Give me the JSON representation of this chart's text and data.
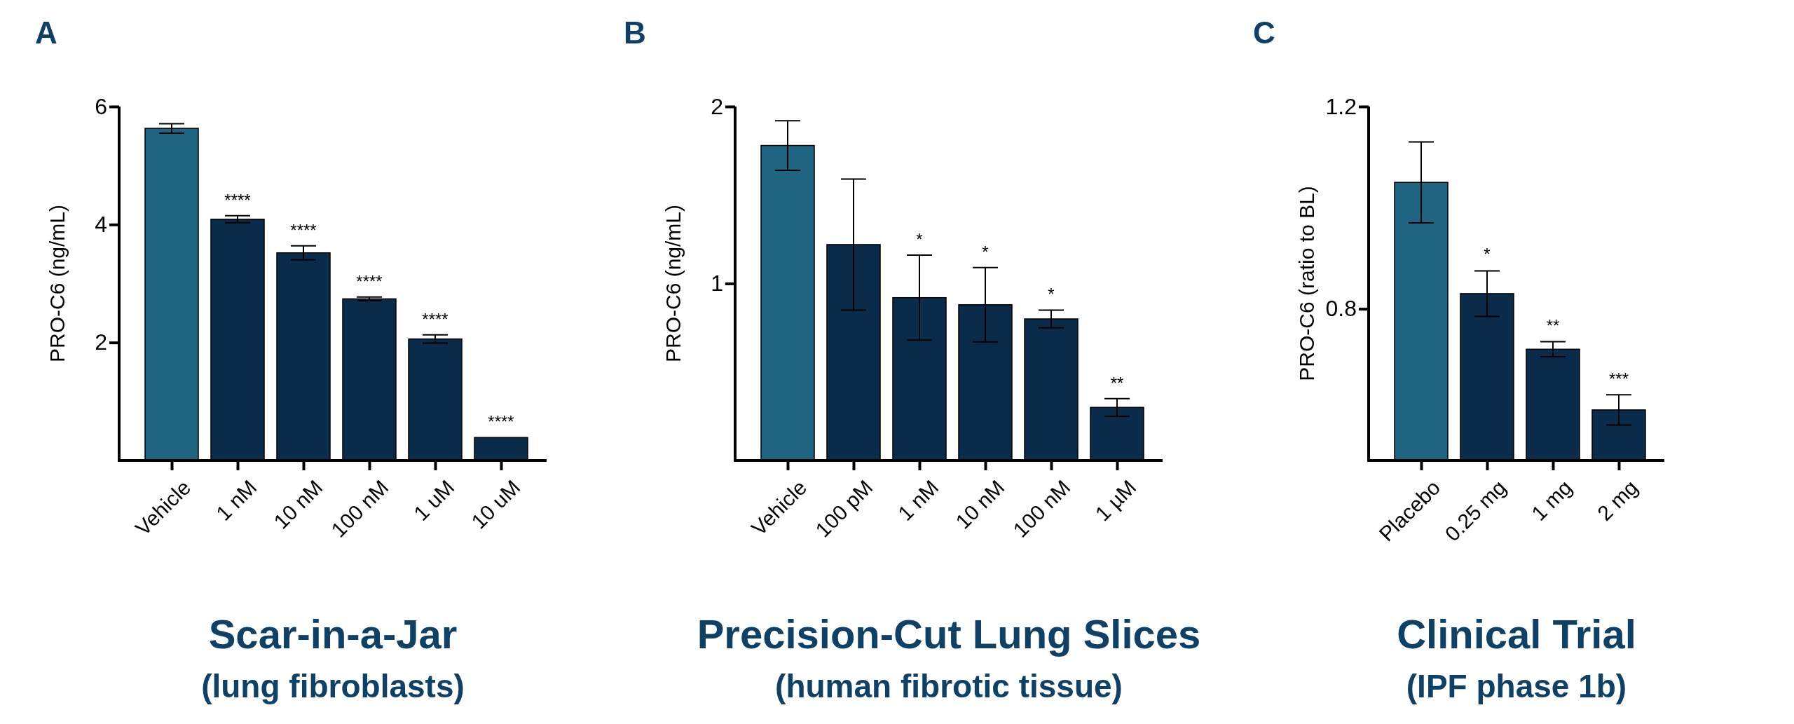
{
  "chart_data": [
    {
      "type": "bar",
      "title": "Scar-in-a-Jar",
      "subtitle": "(lung fibroblasts)",
      "ylabel": "PRO-C6 (ng/mL)",
      "categories": [
        "Vehicle",
        "1 nM",
        "10 nM",
        "100 nM",
        "1 uM",
        "10 uM"
      ],
      "values": [
        5.63,
        4.09,
        3.52,
        2.74,
        2.06,
        0.39
      ],
      "errors": [
        0.08,
        0.06,
        0.12,
        0.03,
        0.07,
        null
      ],
      "colors": [
        "#1f6480",
        "#0b2b4a",
        "#0b2b4a",
        "#0b2b4a",
        "#0b2b4a",
        "#0b2b4a"
      ],
      "ylim": [
        0,
        6
      ],
      "yticks": [
        2,
        4,
        6
      ],
      "annotations": [
        "A",
        {
          "text": "****",
          "x": "1 nM",
          "y": 4.15
        },
        {
          "text": "****",
          "x": "10 nM",
          "y": 3.64
        },
        {
          "text": "****",
          "x": "100 nM",
          "y": 2.77
        },
        {
          "text": "****",
          "x": "1 uM",
          "y": 2.13
        },
        {
          "text": "****",
          "x": "10 uM",
          "y": 0.39
        }
      ]
    },
    {
      "type": "bar",
      "title": "Precision-Cut Lung Slices",
      "subtitle": "(human fibrotic tissue)",
      "ylabel": "PRO-C6 (ng/mL)",
      "categories": [
        "Vehicle",
        "100 pM",
        "1 nM",
        "10 nM",
        "100 nM",
        "1 µM"
      ],
      "values": [
        1.78,
        1.22,
        0.92,
        0.88,
        0.8,
        0.3
      ],
      "errors": [
        0.14,
        0.37,
        0.24,
        0.21,
        0.05,
        0.05
      ],
      "colors": [
        "#1f6480",
        "#0b2b4a",
        "#0b2b4a",
        "#0b2b4a",
        "#0b2b4a",
        "#0b2b4a"
      ],
      "ylim": [
        0,
        2
      ],
      "yticks": [
        1,
        2
      ],
      "annotations": [
        "B",
        {
          "text": "*",
          "x": "1 nM",
          "y": 1.16
        },
        {
          "text": "*",
          "x": "10 nM",
          "y": 1.09
        },
        {
          "text": "*",
          "x": "100 nM",
          "y": 0.85
        },
        {
          "text": "**",
          "x": "1 µM",
          "y": 0.35
        }
      ]
    },
    {
      "type": "bar",
      "title": "Clinical Trial",
      "subtitle": "(IPF phase 1b)",
      "ylabel": "PRO-C6 (ratio to BL)",
      "categories": [
        "Placebo",
        "0.25 mg",
        "1 mg",
        "2 mg"
      ],
      "values": [
        1.05,
        0.83,
        0.72,
        0.6
      ],
      "errors": [
        0.08,
        0.045,
        0.015,
        0.03
      ],
      "colors": [
        "#1f6480",
        "#0b2b4a",
        "#0b2b4a",
        "#0b2b4a"
      ],
      "ylim": [
        0.5,
        1.2
      ],
      "yticks": [
        0.8,
        1.2
      ],
      "annotations": [
        "C",
        {
          "text": "*",
          "x": "0.25 mg",
          "y": 0.877
        },
        {
          "text": "**",
          "x": "1 mg",
          "y": 0.735
        },
        {
          "text": "***",
          "x": "2 mg",
          "y": 0.63
        }
      ]
    }
  ]
}
